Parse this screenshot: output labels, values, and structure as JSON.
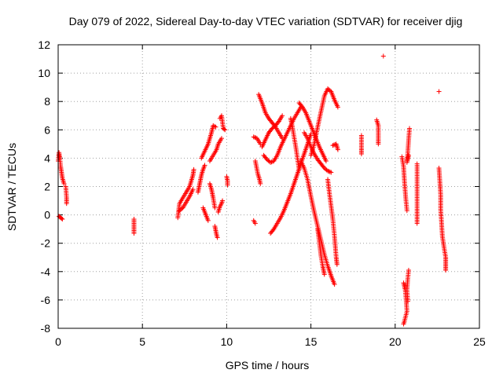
{
  "chart_data": {
    "type": "scatter",
    "title": "Day 079 of 2022, Sidereal Day-to-day VTEC variation (SDTVAR) for receiver djig",
    "xlabel": "GPS time / hours",
    "ylabel": "SDTVAR / TECUs",
    "xlim": [
      0,
      25
    ],
    "ylim": [
      -8,
      12
    ],
    "xticks": [
      0,
      5,
      10,
      15,
      20,
      25
    ],
    "yticks": [
      -8,
      -6,
      -4,
      -2,
      0,
      2,
      4,
      6,
      8,
      10,
      12
    ],
    "grid": true,
    "marker": "plus",
    "color": "#ff0000",
    "segments": [
      [
        [
          0.0,
          3.8
        ],
        [
          0.05,
          4.4
        ],
        [
          0.1,
          4.0
        ],
        [
          0.15,
          3.4
        ],
        [
          0.2,
          3.0
        ],
        [
          0.25,
          2.6
        ],
        [
          0.3,
          2.4
        ],
        [
          0.35,
          2.2
        ]
      ],
      [
        [
          0.05,
          -0.1
        ],
        [
          0.15,
          -0.2
        ],
        [
          0.25,
          -0.3
        ]
      ],
      [
        [
          0.45,
          2.0
        ],
        [
          0.5,
          1.2
        ],
        [
          0.5,
          0.8
        ]
      ],
      [
        [
          4.5,
          -0.3
        ],
        [
          4.5,
          -0.8
        ],
        [
          4.5,
          -1.3
        ]
      ],
      [
        [
          7.1,
          -0.2
        ],
        [
          7.2,
          0.8
        ],
        [
          7.4,
          1.2
        ],
        [
          7.6,
          1.6
        ],
        [
          7.8,
          2.0
        ],
        [
          7.9,
          2.4
        ],
        [
          8.0,
          2.8
        ],
        [
          8.05,
          3.2
        ]
      ],
      [
        [
          7.2,
          0.3
        ],
        [
          7.4,
          0.5
        ],
        [
          7.6,
          0.9
        ],
        [
          7.8,
          1.3
        ],
        [
          8.0,
          1.8
        ]
      ],
      [
        [
          8.3,
          1.6
        ],
        [
          8.4,
          2.2
        ],
        [
          8.5,
          2.8
        ],
        [
          8.6,
          3.2
        ],
        [
          8.7,
          3.5
        ]
      ],
      [
        [
          8.5,
          4.0
        ],
        [
          8.7,
          4.5
        ],
        [
          8.9,
          5.0
        ],
        [
          9.0,
          5.4
        ],
        [
          9.1,
          5.8
        ],
        [
          9.2,
          6.3
        ],
        [
          9.35,
          6.2
        ]
      ],
      [
        [
          9.0,
          3.8
        ],
        [
          9.2,
          4.2
        ],
        [
          9.4,
          4.6
        ],
        [
          9.5,
          5.0
        ],
        [
          9.6,
          5.2
        ],
        [
          9.7,
          5.4
        ]
      ],
      [
        [
          8.6,
          0.5
        ],
        [
          8.7,
          0.2
        ],
        [
          8.8,
          -0.1
        ],
        [
          8.9,
          -0.4
        ]
      ],
      [
        [
          9.0,
          2.2
        ],
        [
          9.1,
          1.8
        ],
        [
          9.2,
          1.2
        ],
        [
          9.3,
          0.5
        ]
      ],
      [
        [
          9.3,
          -0.8
        ],
        [
          9.35,
          -1.1
        ],
        [
          9.4,
          -1.4
        ],
        [
          9.45,
          -1.6
        ]
      ],
      [
        [
          9.5,
          0.2
        ],
        [
          9.6,
          0.6
        ],
        [
          9.7,
          0.8
        ],
        [
          9.75,
          1.0
        ]
      ],
      [
        [
          9.6,
          6.8
        ],
        [
          9.7,
          7.0
        ],
        [
          9.8,
          6.1
        ],
        [
          9.9,
          6.0
        ]
      ],
      [
        [
          10.0,
          2.7
        ],
        [
          10.05,
          2.4
        ],
        [
          10.05,
          2.1
        ]
      ],
      [
        [
          11.6,
          -0.4
        ],
        [
          11.7,
          -0.6
        ]
      ],
      [
        [
          11.6,
          5.5
        ],
        [
          11.8,
          5.4
        ],
        [
          12.0,
          5.0
        ]
      ],
      [
        [
          11.7,
          3.8
        ],
        [
          11.85,
          2.9
        ],
        [
          11.95,
          2.5
        ],
        [
          12.0,
          2.2
        ]
      ],
      [
        [
          11.9,
          8.5
        ],
        [
          12.1,
          7.9
        ],
        [
          12.3,
          7.2
        ],
        [
          12.5,
          6.8
        ],
        [
          12.7,
          6.5
        ],
        [
          12.9,
          6.2
        ],
        [
          13.1,
          5.8
        ],
        [
          13.3,
          5.4
        ]
      ],
      [
        [
          12.1,
          4.8
        ],
        [
          12.3,
          5.3
        ],
        [
          12.5,
          5.8
        ],
        [
          12.7,
          6.1
        ],
        [
          12.9,
          6.3
        ],
        [
          13.1,
          6.6
        ],
        [
          13.3,
          7.0
        ]
      ],
      [
        [
          12.2,
          4.2
        ],
        [
          12.4,
          3.9
        ],
        [
          12.6,
          3.7
        ],
        [
          12.8,
          3.8
        ],
        [
          13.0,
          4.2
        ],
        [
          13.2,
          4.8
        ],
        [
          13.4,
          5.3
        ],
        [
          13.6,
          5.8
        ],
        [
          13.8,
          6.3
        ],
        [
          14.0,
          6.8
        ],
        [
          14.2,
          7.2
        ],
        [
          14.4,
          7.6
        ]
      ],
      [
        [
          12.6,
          -1.3
        ],
        [
          12.8,
          -1.0
        ],
        [
          13.0,
          -0.6
        ],
        [
          13.2,
          -0.2
        ],
        [
          13.4,
          0.3
        ],
        [
          13.6,
          0.9
        ],
        [
          13.8,
          1.5
        ],
        [
          14.0,
          2.2
        ],
        [
          14.2,
          2.9
        ],
        [
          14.4,
          3.6
        ],
        [
          14.6,
          4.3
        ],
        [
          14.8,
          5.0
        ],
        [
          15.0,
          5.7
        ]
      ],
      [
        [
          13.8,
          6.8
        ],
        [
          13.9,
          6.2
        ],
        [
          14.0,
          5.5
        ],
        [
          14.1,
          4.8
        ],
        [
          14.2,
          4.0
        ],
        [
          14.3,
          3.2
        ]
      ],
      [
        [
          14.3,
          7.9
        ],
        [
          14.5,
          7.6
        ],
        [
          14.7,
          7.2
        ],
        [
          14.9,
          6.6
        ],
        [
          15.1,
          6.0
        ],
        [
          15.3,
          5.4
        ],
        [
          15.5,
          4.8
        ],
        [
          15.7,
          4.3
        ],
        [
          15.9,
          3.8
        ]
      ],
      [
        [
          14.4,
          3.8
        ],
        [
          14.6,
          3.3
        ],
        [
          14.8,
          2.5
        ],
        [
          15.0,
          1.3
        ],
        [
          15.2,
          0.2
        ],
        [
          15.4,
          -0.8
        ],
        [
          15.6,
          -1.8
        ],
        [
          15.8,
          -2.8
        ],
        [
          16.0,
          -3.6
        ],
        [
          16.2,
          -4.3
        ],
        [
          16.4,
          -4.9
        ]
      ],
      [
        [
          14.6,
          5.8
        ],
        [
          14.8,
          5.4
        ],
        [
          15.0,
          4.8
        ],
        [
          15.2,
          4.3
        ],
        [
          15.4,
          3.9
        ],
        [
          15.6,
          3.6
        ],
        [
          15.8,
          3.3
        ],
        [
          16.0,
          3.1
        ],
        [
          16.2,
          3.0
        ]
      ],
      [
        [
          15.0,
          4.2
        ],
        [
          15.2,
          5.0
        ],
        [
          15.4,
          6.2
        ],
        [
          15.6,
          7.3
        ],
        [
          15.8,
          8.4
        ],
        [
          16.0,
          8.9
        ],
        [
          16.2,
          8.7
        ],
        [
          16.4,
          8.1
        ],
        [
          16.6,
          7.6
        ]
      ],
      [
        [
          15.4,
          -1.0
        ],
        [
          15.5,
          -1.9
        ],
        [
          15.6,
          -2.9
        ],
        [
          15.7,
          -3.6
        ],
        [
          15.8,
          -4.2
        ]
      ],
      [
        [
          16.0,
          2.5
        ],
        [
          16.1,
          1.5
        ],
        [
          16.2,
          0.6
        ],
        [
          16.3,
          -0.3
        ],
        [
          16.4,
          -1.5
        ],
        [
          16.5,
          -3.0
        ],
        [
          16.55,
          -3.5
        ]
      ],
      [
        [
          16.3,
          4.9
        ],
        [
          16.5,
          5.0
        ],
        [
          16.6,
          4.6
        ]
      ],
      [
        [
          18.0,
          5.6
        ],
        [
          18.0,
          4.7
        ],
        [
          18.0,
          4.3
        ]
      ],
      [
        [
          18.9,
          6.7
        ],
        [
          19.0,
          6.3
        ],
        [
          19.0,
          5.3
        ],
        [
          19.0,
          5.0
        ]
      ],
      [
        [
          19.3,
          11.2
        ]
      ],
      [
        [
          20.4,
          4.1
        ],
        [
          20.5,
          3.4
        ],
        [
          20.55,
          2.4
        ],
        [
          20.6,
          1.6
        ],
        [
          20.65,
          0.9
        ],
        [
          20.7,
          0.3
        ]
      ],
      [
        [
          20.5,
          -4.8
        ],
        [
          20.6,
          -5.3
        ],
        [
          20.65,
          -6.0
        ],
        [
          20.7,
          -6.8
        ],
        [
          20.55,
          -7.5
        ],
        [
          20.5,
          -7.7
        ]
      ],
      [
        [
          20.8,
          -3.9
        ],
        [
          20.75,
          -4.5
        ],
        [
          20.7,
          -5.3
        ],
        [
          20.75,
          -6.1
        ]
      ],
      [
        [
          20.85,
          6.1
        ],
        [
          20.8,
          5.3
        ],
        [
          20.75,
          4.4
        ],
        [
          20.7,
          3.7
        ],
        [
          20.8,
          4.2
        ]
      ],
      [
        [
          21.3,
          3.6
        ],
        [
          21.3,
          0.4
        ],
        [
          21.3,
          -0.6
        ]
      ],
      [
        [
          22.6,
          8.7
        ]
      ],
      [
        [
          22.6,
          3.3
        ],
        [
          22.65,
          2.4
        ],
        [
          22.7,
          1.4
        ],
        [
          22.7,
          0.4
        ],
        [
          22.75,
          -0.5
        ],
        [
          22.8,
          -1.5
        ],
        [
          22.9,
          -2.3
        ],
        [
          23.0,
          -3.0
        ],
        [
          23.0,
          -3.5
        ],
        [
          23.0,
          -3.9
        ]
      ]
    ]
  }
}
